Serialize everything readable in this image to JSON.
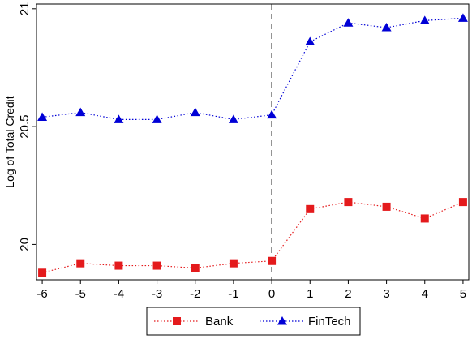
{
  "chart_data": {
    "type": "line",
    "title": "",
    "xlabel": "",
    "ylabel": "Log of Total Credit",
    "x": [
      -6,
      -5,
      -4,
      -3,
      -2,
      -1,
      0,
      1,
      2,
      3,
      4,
      5
    ],
    "x_tick_labels": [
      "-6",
      "-5",
      "-4",
      "-3",
      "-2",
      "-1",
      "0",
      "1",
      "2",
      "3",
      "4",
      "5"
    ],
    "y_ticks": [
      20,
      20.5,
      21
    ],
    "y_tick_labels": [
      "20",
      "20.5",
      "21"
    ],
    "xlim": [
      -6.15,
      5.15
    ],
    "ylim": [
      19.85,
      21.02
    ],
    "grid": false,
    "legend_position": "bottom",
    "vertical_reference_line": 0,
    "series": [
      {
        "name": "Bank",
        "color": "#e41a1c",
        "marker": "square",
        "line_style": "dotted",
        "values": [
          19.88,
          19.92,
          19.91,
          19.91,
          19.9,
          19.92,
          19.93,
          20.15,
          20.18,
          20.16,
          20.11,
          20.18
        ]
      },
      {
        "name": "FinTech",
        "color": "#0000d6",
        "marker": "triangle",
        "line_style": "dotted",
        "values": [
          20.54,
          20.56,
          20.53,
          20.53,
          20.56,
          20.53,
          20.55,
          20.86,
          20.94,
          20.92,
          20.95,
          20.96
        ]
      }
    ]
  }
}
